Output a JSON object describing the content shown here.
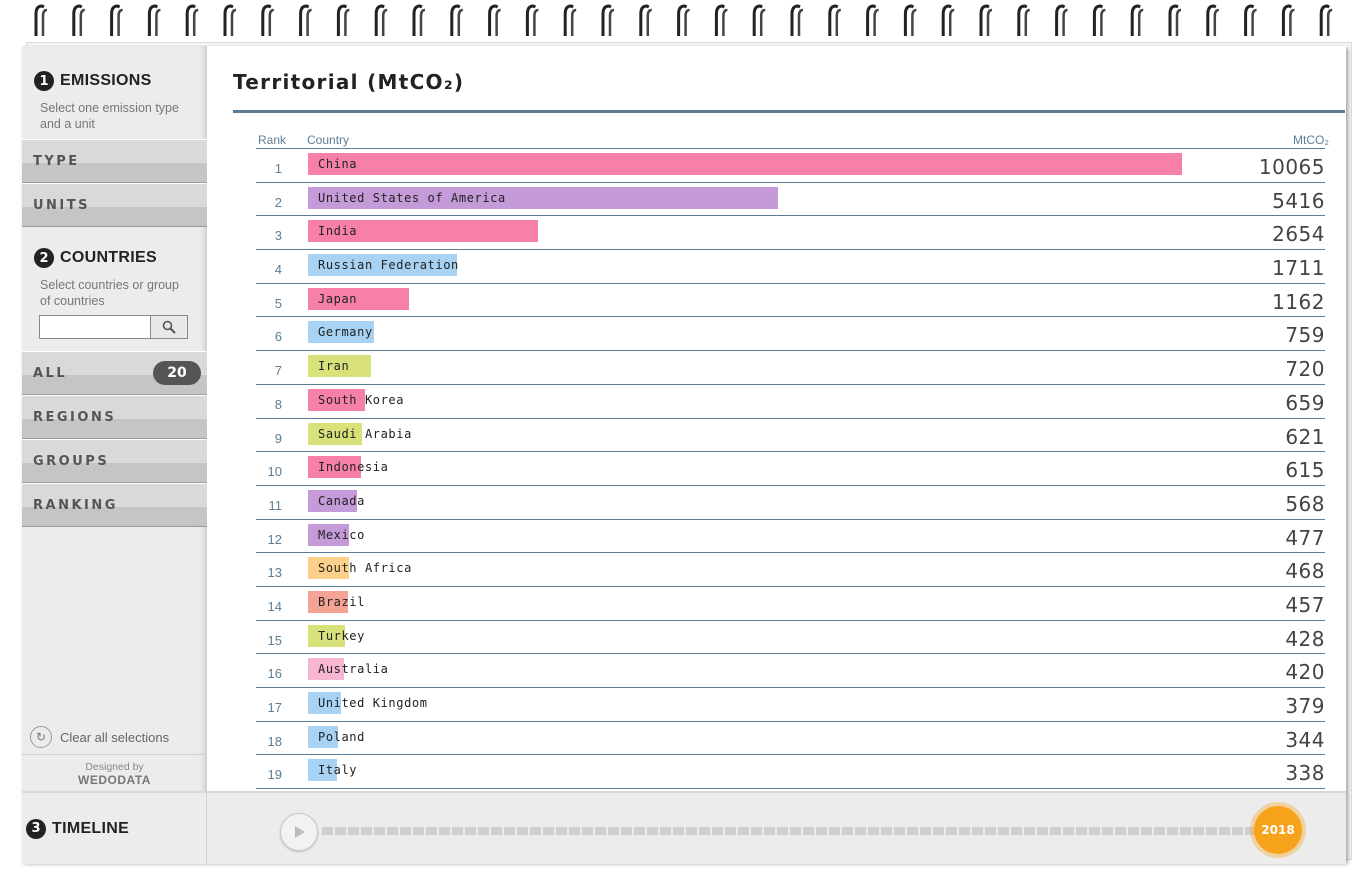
{
  "emissions": {
    "number": "1",
    "title": "EMISSIONS",
    "description": "Select one emission type and a unit"
  },
  "type_label": "TYPE",
  "units_label": "UNITS",
  "countries": {
    "number": "2",
    "title": "COUNTRIES",
    "description": "Select countries or group of countries",
    "search_placeholder": ""
  },
  "menu": {
    "all": "ALL",
    "all_count": "20",
    "regions": "REGIONS",
    "groups": "GROUPS",
    "ranking": "RANKING"
  },
  "clear_label": "Clear all selections",
  "credit": {
    "label": "Designed by",
    "brand": "WEDODATA"
  },
  "main": {
    "title": "Territorial (MtCO₂)",
    "col_rank": "Rank",
    "col_country": "Country",
    "col_unit": "MtCO₂"
  },
  "rows": [
    {
      "rank": "1",
      "country": "China",
      "value": "10065",
      "color": "#f780a8"
    },
    {
      "rank": "2",
      "country": "United States of America",
      "value": "5416",
      "color": "#c59ad8"
    },
    {
      "rank": "3",
      "country": "India",
      "value": "2654",
      "color": "#f780a8"
    },
    {
      "rank": "4",
      "country": "Russian Federation",
      "value": "1711",
      "color": "#a8d2f3"
    },
    {
      "rank": "5",
      "country": "Japan",
      "value": "1162",
      "color": "#f780a8"
    },
    {
      "rank": "6",
      "country": "Germany",
      "value": "759",
      "color": "#a8d2f3"
    },
    {
      "rank": "7",
      "country": "Iran",
      "value": "720",
      "color": "#d9e27a"
    },
    {
      "rank": "8",
      "country": "South Korea",
      "value": "659",
      "color": "#f780a8"
    },
    {
      "rank": "9",
      "country": "Saudi Arabia",
      "value": "621",
      "color": "#d9e27a"
    },
    {
      "rank": "10",
      "country": "Indonesia",
      "value": "615",
      "color": "#f780a8"
    },
    {
      "rank": "11",
      "country": "Canada",
      "value": "568",
      "color": "#c59ad8"
    },
    {
      "rank": "12",
      "country": "Mexico",
      "value": "477",
      "color": "#c59ad8"
    },
    {
      "rank": "13",
      "country": "South Africa",
      "value": "468",
      "color": "#fdd08a"
    },
    {
      "rank": "14",
      "country": "Brazil",
      "value": "457",
      "color": "#f4a394"
    },
    {
      "rank": "15",
      "country": "Turkey",
      "value": "428",
      "color": "#d9e27a"
    },
    {
      "rank": "16",
      "country": "Australia",
      "value": "420",
      "color": "#f9b6d2"
    },
    {
      "rank": "17",
      "country": "United Kingdom",
      "value": "379",
      "color": "#a8d2f3"
    },
    {
      "rank": "18",
      "country": "Poland",
      "value": "344",
      "color": "#a8d2f3"
    },
    {
      "rank": "19",
      "country": "Italy",
      "value": "338",
      "color": "#a8d2f3"
    }
  ],
  "timeline": {
    "number": "3",
    "title": "TIMELINE",
    "year": "2018"
  },
  "icons": {
    "search": "search-icon",
    "clear": "refresh-icon",
    "play": "play-icon"
  },
  "colors": {
    "accent": "#5c7d95",
    "year_badge": "#f7a21b"
  }
}
